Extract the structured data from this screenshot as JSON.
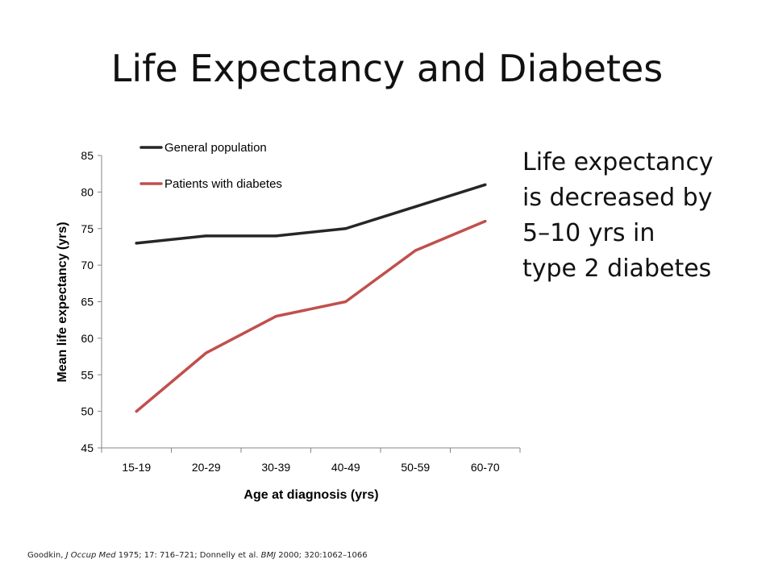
{
  "slide": {
    "title": "Life Expectancy and Diabetes",
    "callout_lines": [
      "Life expectancy",
      "is decreased by",
      "5–10 yrs in",
      "type 2 diabetes"
    ],
    "citation": {
      "a": "Goodkin, ",
      "a_journal": "J Occup Med",
      "a_rest": " 1975; 17: 716–721; Donnelly et al. ",
      "b_journal": "BMJ",
      "b_rest": " 2000; 320:1062–1066"
    }
  },
  "colors": {
    "general": "#262626",
    "diabetes": "#c0504d",
    "axis": "#868686"
  },
  "chart_data": {
    "type": "line",
    "title": "",
    "xlabel": "Age at diagnosis (yrs)",
    "ylabel": "Mean life expectancy (yrs)",
    "categories": [
      "15-19",
      "20-29",
      "30-39",
      "40-49",
      "50-59",
      "60-70"
    ],
    "ylim": [
      45,
      85
    ],
    "yticks": [
      45,
      50,
      55,
      60,
      65,
      70,
      75,
      80,
      85
    ],
    "grid": false,
    "legend_position": "top-left",
    "series": [
      {
        "name": "General population",
        "values": [
          73,
          74,
          74,
          75,
          78,
          81
        ]
      },
      {
        "name": "Patients with diabetes",
        "values": [
          50,
          58,
          63,
          65,
          72,
          76
        ]
      }
    ]
  }
}
